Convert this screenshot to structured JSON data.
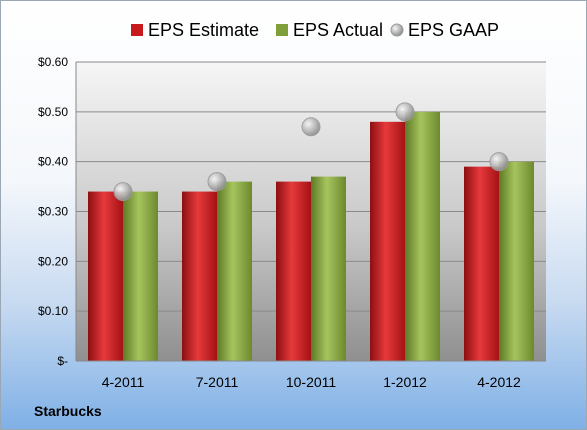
{
  "chart_data": {
    "type": "bar",
    "title": "",
    "xlabel": "",
    "ylabel": "",
    "company": "Starbucks",
    "categories": [
      "4-2011",
      "7-2011",
      "10-2011",
      "1-2012",
      "4-2012"
    ],
    "ylim": [
      0,
      0.6
    ],
    "yticks": [
      0,
      0.1,
      0.2,
      0.3,
      0.4,
      0.5,
      0.6
    ],
    "ytick_labels": [
      "$-",
      "$0.10",
      "$0.20",
      "$0.30",
      "$0.40",
      "$0.50",
      "$0.60"
    ],
    "grid": true,
    "legend_position": "top",
    "series": [
      {
        "name": "EPS Estimate",
        "kind": "bar",
        "color": "#c8191c",
        "values": [
          0.34,
          0.34,
          0.36,
          0.48,
          0.39
        ]
      },
      {
        "name": "EPS Actual",
        "kind": "bar",
        "color": "#7e9f3a",
        "values": [
          0.34,
          0.36,
          0.37,
          0.5,
          0.4
        ]
      },
      {
        "name": "EPS GAAP",
        "kind": "marker",
        "color": "#b7b7b7",
        "values": [
          0.34,
          0.36,
          0.47,
          0.5,
          0.4
        ]
      }
    ]
  }
}
